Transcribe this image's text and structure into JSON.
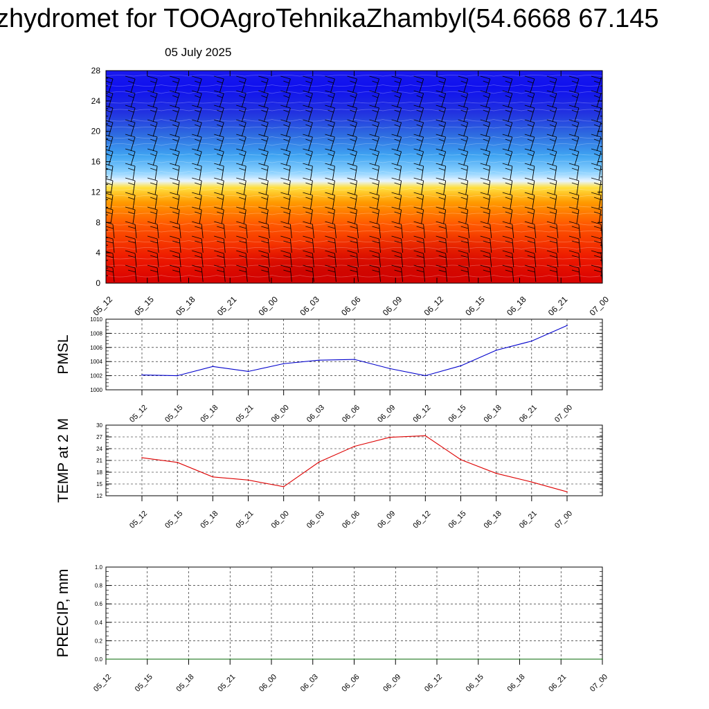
{
  "header": {
    "title": "zhydromet for TOOAgroTehnikaZhambyl(54.6668 67.145",
    "date": "05 July 2025"
  },
  "time_labels": [
    "05_12",
    "05_15",
    "05_18",
    "05_21",
    "06_00",
    "06_03",
    "06_06",
    "06_09",
    "06_12",
    "06_15",
    "06_18",
    "06_21",
    "07_00"
  ],
  "colors": {
    "pmsl_line": "#0000cc",
    "temp_line": "#dd0000",
    "precip_line": "#006400",
    "cross_section_top": "#0000ee",
    "cross_section_bottom": "#e80000"
  },
  "chart_data": [
    {
      "type": "heatmap",
      "name": "time-height cross-section",
      "y_ticks": [
        0,
        4,
        8,
        12,
        16,
        20,
        24,
        28
      ],
      "ylim": [
        0,
        28
      ],
      "x": [
        "05_12",
        "05_15",
        "05_18",
        "05_21",
        "06_00",
        "06_03",
        "06_06",
        "06_09",
        "06_12",
        "06_15",
        "06_18",
        "06_21",
        "07_00"
      ],
      "overlay": "wind barbs",
      "grid": false
    },
    {
      "type": "line",
      "ylabel": "PMSL",
      "x": [
        "05_12",
        "05_15",
        "05_18",
        "05_21",
        "06_00",
        "06_03",
        "06_06",
        "06_09",
        "06_12",
        "06_15",
        "06_18",
        "06_21",
        "07_00"
      ],
      "values": [
        1002.1,
        1002.0,
        1003.3,
        1002.6,
        1003.7,
        1004.2,
        1004.3,
        1003.0,
        1002.0,
        1003.4,
        1005.6,
        1006.9,
        1009.1
      ],
      "ylim": [
        1000,
        1010
      ],
      "y_ticks": [
        1000,
        1002,
        1004,
        1006,
        1008,
        1010
      ],
      "grid": true
    },
    {
      "type": "line",
      "ylabel": "TEMP at 2 M",
      "x": [
        "05_12",
        "05_15",
        "05_18",
        "05_21",
        "06_00",
        "06_03",
        "06_06",
        "06_09",
        "06_12",
        "06_15",
        "06_18",
        "06_21",
        "07_00"
      ],
      "values": [
        21.7,
        20.5,
        16.8,
        16.0,
        14.3,
        20.6,
        24.6,
        26.9,
        27.3,
        21.2,
        17.7,
        15.5,
        13.0
      ],
      "ylim": [
        12,
        30
      ],
      "y_ticks": [
        12,
        15,
        18,
        21,
        24,
        27,
        30
      ],
      "grid": true
    },
    {
      "type": "line",
      "ylabel": "PRECIP, mm",
      "x": [
        "05_12",
        "05_15",
        "05_18",
        "05_21",
        "06_00",
        "06_03",
        "06_06",
        "06_09",
        "06_12",
        "06_15",
        "06_18",
        "06_21",
        "07_00"
      ],
      "values": [
        0,
        0,
        0,
        0,
        0,
        0,
        0,
        0,
        0,
        0,
        0,
        0,
        0
      ],
      "ylim": [
        0,
        1
      ],
      "y_ticks": [
        "0.0",
        "0.2",
        "0.4",
        "0.6",
        "0.8",
        "1.0"
      ],
      "grid": true
    }
  ]
}
